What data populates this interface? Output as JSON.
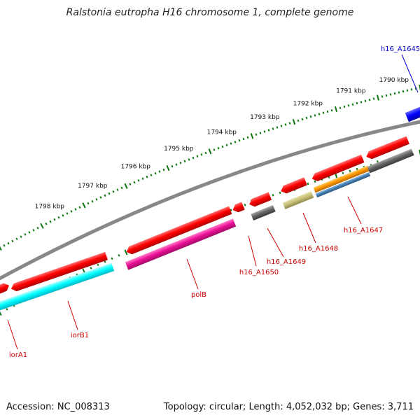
{
  "title": "Ralstonia eutropha H16 chromosome 1, complete genome",
  "footer": {
    "accession": "Accession: NC_008313",
    "summary": "Topology: circular; Length: 4,052,032 bp; Genes: 3,711"
  },
  "colors": {
    "label_red": "#cc0000",
    "label_blue": "#0000cc",
    "tick_green": "#117711",
    "backbone": "#888888",
    "cds_red": "#ff0000",
    "cds_cyan": "#00ffff",
    "cds_magenta": "#ee1199",
    "cds_gray": "#666666",
    "cds_olive": "#c8c07a",
    "cds_orange": "#ff9900",
    "cds_steelblue": "#4682b4",
    "cds_blue": "#0000ff"
  },
  "kbp_ticks": [
    {
      "kbp": 1790,
      "label": "1790 kbp"
    },
    {
      "kbp": 1791,
      "label": "1791 kbp"
    },
    {
      "kbp": 1792,
      "label": "1792 kbp"
    },
    {
      "kbp": 1793,
      "label": "1793 kbp"
    },
    {
      "kbp": 1794,
      "label": "1794 kbp"
    },
    {
      "kbp": 1795,
      "label": "1795 kbp"
    },
    {
      "kbp": 1796,
      "label": "1796 kbp"
    },
    {
      "kbp": 1797,
      "label": "1797 kbp"
    },
    {
      "kbp": 1798,
      "label": "1798 kbp"
    }
  ],
  "gene_labels": [
    {
      "name": "iorA1",
      "color": "#cc0000"
    },
    {
      "name": "iorB1",
      "color": "#cc0000"
    },
    {
      "name": "polB",
      "color": "#cc0000"
    },
    {
      "name": "h16_A1650",
      "color": "#cc0000"
    },
    {
      "name": "h16_A1649",
      "color": "#cc0000"
    },
    {
      "name": "h16_A1648",
      "color": "#cc0000"
    },
    {
      "name": "h16_A1647",
      "color": "#cc0000"
    },
    {
      "name": "h16_A1645",
      "color": "#0000cc"
    }
  ]
}
